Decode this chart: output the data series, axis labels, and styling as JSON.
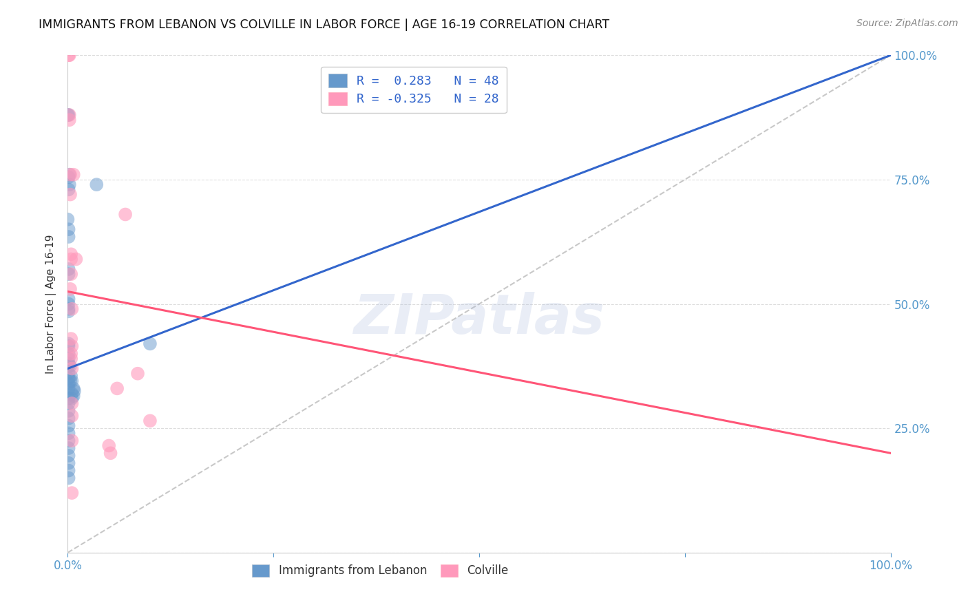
{
  "title": "IMMIGRANTS FROM LEBANON VS COLVILLE IN LABOR FORCE | AGE 16-19 CORRELATION CHART",
  "source": "Source: ZipAtlas.com",
  "ylabel": "In Labor Force | Age 16-19",
  "legend_blue_r_val": "0.283",
  "legend_blue_n": "N = 48",
  "legend_pink_r_val": "-0.325",
  "legend_pink_n": "N = 28",
  "legend_blue_label": "Immigrants from Lebanon",
  "legend_pink_label": "Colville",
  "blue_color": "#6699CC",
  "pink_color": "#FF99BB",
  "blue_scatter": [
    [
      0.0,
      0.88
    ],
    [
      0.001,
      0.88
    ],
    [
      0.002,
      0.76
    ],
    [
      0.002,
      0.74
    ],
    [
      0.0,
      0.67
    ],
    [
      0.001,
      0.755
    ],
    [
      0.001,
      0.73
    ],
    [
      0.001,
      0.65
    ],
    [
      0.001,
      0.635
    ],
    [
      0.001,
      0.57
    ],
    [
      0.001,
      0.56
    ],
    [
      0.001,
      0.51
    ],
    [
      0.001,
      0.5
    ],
    [
      0.001,
      0.49
    ],
    [
      0.001,
      0.485
    ],
    [
      0.001,
      0.42
    ],
    [
      0.001,
      0.415
    ],
    [
      0.001,
      0.4
    ],
    [
      0.001,
      0.39
    ],
    [
      0.001,
      0.38
    ],
    [
      0.001,
      0.375
    ],
    [
      0.001,
      0.36
    ],
    [
      0.001,
      0.35
    ],
    [
      0.001,
      0.34
    ],
    [
      0.001,
      0.33
    ],
    [
      0.001,
      0.31
    ],
    [
      0.001,
      0.3
    ],
    [
      0.001,
      0.285
    ],
    [
      0.001,
      0.27
    ],
    [
      0.001,
      0.255
    ],
    [
      0.001,
      0.24
    ],
    [
      0.001,
      0.225
    ],
    [
      0.001,
      0.21
    ],
    [
      0.001,
      0.195
    ],
    [
      0.001,
      0.18
    ],
    [
      0.001,
      0.165
    ],
    [
      0.001,
      0.15
    ],
    [
      0.003,
      0.375
    ],
    [
      0.003,
      0.345
    ],
    [
      0.004,
      0.355
    ],
    [
      0.005,
      0.345
    ],
    [
      0.005,
      0.32
    ],
    [
      0.005,
      0.31
    ],
    [
      0.007,
      0.33
    ],
    [
      0.007,
      0.315
    ],
    [
      0.008,
      0.325
    ],
    [
      0.035,
      0.74
    ],
    [
      0.1,
      0.42
    ]
  ],
  "pink_scatter": [
    [
      0.001,
      1.0
    ],
    [
      0.002,
      1.0
    ],
    [
      0.002,
      0.88
    ],
    [
      0.002,
      0.87
    ],
    [
      0.003,
      0.76
    ],
    [
      0.003,
      0.72
    ],
    [
      0.004,
      0.6
    ],
    [
      0.004,
      0.59
    ],
    [
      0.004,
      0.56
    ],
    [
      0.003,
      0.53
    ],
    [
      0.005,
      0.49
    ],
    [
      0.004,
      0.43
    ],
    [
      0.005,
      0.415
    ],
    [
      0.004,
      0.4
    ],
    [
      0.004,
      0.39
    ],
    [
      0.005,
      0.37
    ],
    [
      0.005,
      0.3
    ],
    [
      0.005,
      0.275
    ],
    [
      0.005,
      0.225
    ],
    [
      0.005,
      0.12
    ],
    [
      0.007,
      0.76
    ],
    [
      0.01,
      0.59
    ],
    [
      0.05,
      0.215
    ],
    [
      0.052,
      0.2
    ],
    [
      0.06,
      0.33
    ],
    [
      0.07,
      0.68
    ],
    [
      0.085,
      0.36
    ],
    [
      0.1,
      0.265
    ]
  ],
  "blue_line_x": [
    0.0,
    1.0
  ],
  "blue_line_y": [
    0.37,
    1.0
  ],
  "pink_line_x": [
    0.0,
    1.0
  ],
  "pink_line_y": [
    0.525,
    0.2
  ],
  "diag_line_x": [
    0.0,
    1.0
  ],
  "diag_line_y": [
    0.0,
    1.0
  ],
  "xlim": [
    0.0,
    1.0
  ],
  "ylim": [
    0.0,
    1.0
  ],
  "xticks": [
    0.0,
    0.25,
    0.5,
    0.75,
    1.0
  ],
  "xticklabels": [
    "0.0%",
    "",
    "",
    "",
    "100.0%"
  ],
  "yticks_right": [
    0.0,
    0.25,
    0.5,
    0.75,
    1.0
  ],
  "yticklabels_right": [
    "",
    "25.0%",
    "50.0%",
    "75.0%",
    "100.0%"
  ],
  "bg_color": "#FFFFFF",
  "grid_color": "#DDDDDD",
  "title_fontsize": 12.5,
  "axis_color": "#5599CC"
}
